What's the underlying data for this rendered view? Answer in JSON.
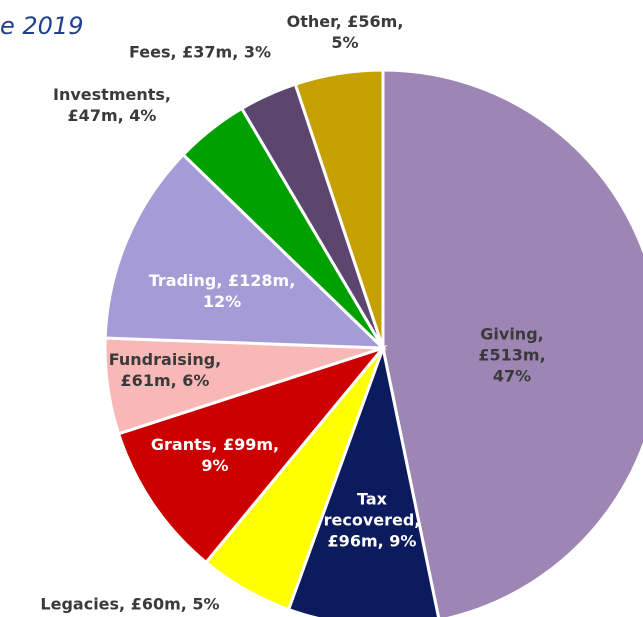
{
  "chart_data": {
    "type": "pie",
    "title": "e 2019",
    "categories": [
      "Giving",
      "Tax recovered",
      "Legacies",
      "Grants",
      "Fundraising",
      "Trading",
      "Investments",
      "Fees",
      "Other"
    ],
    "values": [
      513,
      96,
      60,
      99,
      61,
      128,
      47,
      37,
      56
    ],
    "value_labels": [
      "Giving, £513m,\n47%",
      "Tax\nrecovered,\n£96m, 9%",
      "Legacies, £60m, 5%",
      "Grants, £99m,\n9%",
      "Fundraising,\n£61m, 6%",
      "Trading, £128m,\n12%",
      "Investments,\n£47m, 4%",
      "Fees, £37m, 3%",
      "Other, £56m,\n5%"
    ],
    "colors": [
      "#9e86b4",
      "#0c1a5e",
      "#ffff00",
      "#cc0000",
      "#f8b8b8",
      "#a59bd6",
      "#00a000",
      "#5c4670",
      "#c4a000"
    ]
  }
}
